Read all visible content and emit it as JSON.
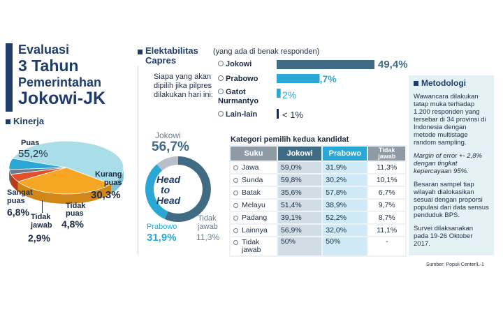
{
  "colors": {
    "navy": "#1f3d6b",
    "blue": "#2aa7d5",
    "slate": "#3f6b85",
    "orange": "#f6a623",
    "red": "#e2502a",
    "teal_light": "#a9dde7",
    "grey": "#6b7a8a",
    "panel": "#e4f2f5"
  },
  "title": {
    "l1": "Evaluasi",
    "l2": "3 Tahun",
    "l3": "Pemerintahan",
    "l4": "Jokowi-JK"
  },
  "kinerja": {
    "heading": "Kinerja",
    "labels": {
      "puas": {
        "name": "Puas",
        "value": "55,2%"
      },
      "kurang": {
        "name1": "Kurang",
        "name2": "puas",
        "value": "30,3%"
      },
      "tidak_puas": {
        "name1": "Tidak",
        "name2": "puas",
        "value": "4,8%"
      },
      "tidak_jawab": {
        "name1": "Tidak",
        "name2": "jawab",
        "value": "2,9%"
      },
      "sangat": {
        "name1": "Sangat",
        "name2": "puas",
        "value": "6,8%"
      }
    }
  },
  "elektabilitas": {
    "heading1": "Elektabilitas",
    "heading2": "Capres",
    "subtitle": "(yang ada di benak responden)",
    "question": "Siapa yang akan dipilih jika pilpres dilakukan hari ini:",
    "bar_labels": [
      {
        "name": "Jokowi",
        "value": "49,4%"
      },
      {
        "name": "Prabowo",
        "value": "21,7%"
      },
      {
        "name": "Gatot Nurmantyo",
        "value": "2%"
      },
      {
        "name": "Lain-lain",
        "value": "< 1%"
      }
    ]
  },
  "h2h": {
    "jokowi_label": "Jokowi",
    "jokowi_value": "56,7%",
    "prabowo_label": "Prabowo",
    "prabowo_value": "31,9%",
    "tidak_label1": "Tidak",
    "tidak_label2": "jawab",
    "tidak_value": "11,3%",
    "center1": "Head",
    "center2": "to",
    "center3": "Head"
  },
  "table": {
    "title": "Kategori pemilih kedua kandidat",
    "headers": [
      "Suku",
      "Jokowi",
      "Prabowo",
      "Tidak jawab"
    ],
    "rows": [
      [
        "Jawa",
        "59,0%",
        "31,9%",
        "11,3%"
      ],
      [
        "Sunda",
        "59,8%",
        "30,2%",
        "10,1%"
      ],
      [
        "Batak",
        "35,6%",
        "57,8%",
        "6,7%"
      ],
      [
        "Melayu",
        "51,4%",
        "38,9%",
        "9,7%"
      ],
      [
        "Padang",
        "39,1%",
        "52,2%",
        "8,7%"
      ],
      [
        "Lainnya",
        "56,9%",
        "32,0%",
        "11,1%"
      ],
      [
        "Tidak jawab",
        "50%",
        "50%",
        "-"
      ]
    ]
  },
  "metodologi": {
    "heading": "Metodologi",
    "p1": "Wawancara dilakukan tatap muka terhadap 1.200 responden yang tersebar di 34 provinsi di Indonesia dengan metode multistage random sampling.",
    "p2": "Margin of error +- 2,8% dengan tingkat kepercayaan 95%.",
    "p3": "Besaran sampel tiap wilayah dialokasikan sesuai dengan proporsi populasi dari data sensus penduduk BPS.",
    "p4": "Survei dilaksanakan pada 19-26 Oktober 2017."
  },
  "source": "Sumber: Populi Center/L-1",
  "chart_data": [
    {
      "type": "pie",
      "title": "Kinerja",
      "categories": [
        "Puas",
        "Kurang puas",
        "Tidak puas",
        "Tidak jawab",
        "Sangat puas"
      ],
      "values": [
        55.2,
        30.3,
        4.8,
        2.9,
        6.8
      ]
    },
    {
      "type": "bar",
      "title": "Elektabilitas Capres",
      "categories": [
        "Jokowi",
        "Prabowo",
        "Gatot Nurmantyo",
        "Lain-lain"
      ],
      "values": [
        49.4,
        21.7,
        2,
        0.8
      ]
    },
    {
      "type": "pie",
      "title": "Head to Head",
      "categories": [
        "Jokowi",
        "Prabowo",
        "Tidak jawab"
      ],
      "values": [
        56.7,
        31.9,
        11.3
      ]
    },
    {
      "type": "table",
      "title": "Kategori pemilih kedua kandidat",
      "categories": [
        "Jawa",
        "Sunda",
        "Batak",
        "Melayu",
        "Padang",
        "Lainnya",
        "Tidak jawab"
      ],
      "series": [
        {
          "name": "Jokowi",
          "values": [
            59.0,
            59.8,
            35.6,
            51.4,
            39.1,
            56.9,
            50
          ]
        },
        {
          "name": "Prabowo",
          "values": [
            31.9,
            30.2,
            57.8,
            38.9,
            52.2,
            32.0,
            50
          ]
        },
        {
          "name": "Tidak jawab",
          "values": [
            11.3,
            10.1,
            6.7,
            9.7,
            8.7,
            11.1,
            null
          ]
        }
      ]
    }
  ]
}
